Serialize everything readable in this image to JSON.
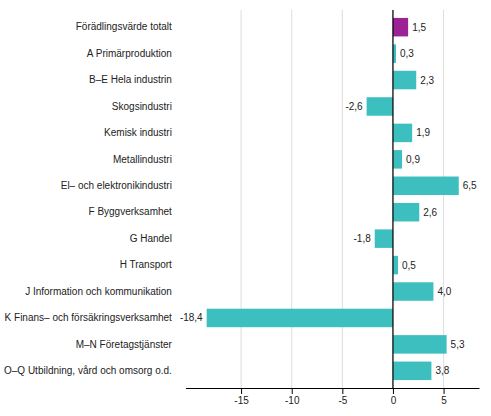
{
  "chart_data": {
    "type": "bar",
    "orientation": "horizontal",
    "categories": [
      "Förädlingsvärde totalt",
      "A Primärproduktion",
      "B–E Hela industrin",
      "Skogsindustri",
      "Kemisk industri",
      "Metallindustri",
      "El– och elektronikindustri",
      "F Byggverksamhet",
      "G Handel",
      "H Transport",
      "J Information och kommunikation",
      "K Finans– och försäkringsverksamhet",
      "M–N Företagstjänster",
      "O–Q Utbildning, vård och omsorg o.d."
    ],
    "values": [
      1.5,
      0.3,
      2.3,
      -2.6,
      1.9,
      0.9,
      6.5,
      2.6,
      -1.8,
      0.5,
      4.0,
      -18.4,
      5.3,
      3.8
    ],
    "value_labels": [
      "1,5",
      "0,3",
      "2,3",
      "-2,6",
      "1,9",
      "0,9",
      "6,5",
      "2,6",
      "-1,8",
      "0,5",
      "4,0",
      "-18,4",
      "5,3",
      "3,8"
    ],
    "colors": [
      "#9b2393",
      "#3dbfbf",
      "#3dbfbf",
      "#3dbfbf",
      "#3dbfbf",
      "#3dbfbf",
      "#3dbfbf",
      "#3dbfbf",
      "#3dbfbf",
      "#3dbfbf",
      "#3dbfbf",
      "#3dbfbf",
      "#3dbfbf",
      "#3dbfbf"
    ],
    "xlim": [
      -20.5,
      8.5
    ],
    "xticks": [
      -15,
      -10,
      -5,
      0,
      5
    ],
    "grid": true,
    "data_labels": true
  }
}
